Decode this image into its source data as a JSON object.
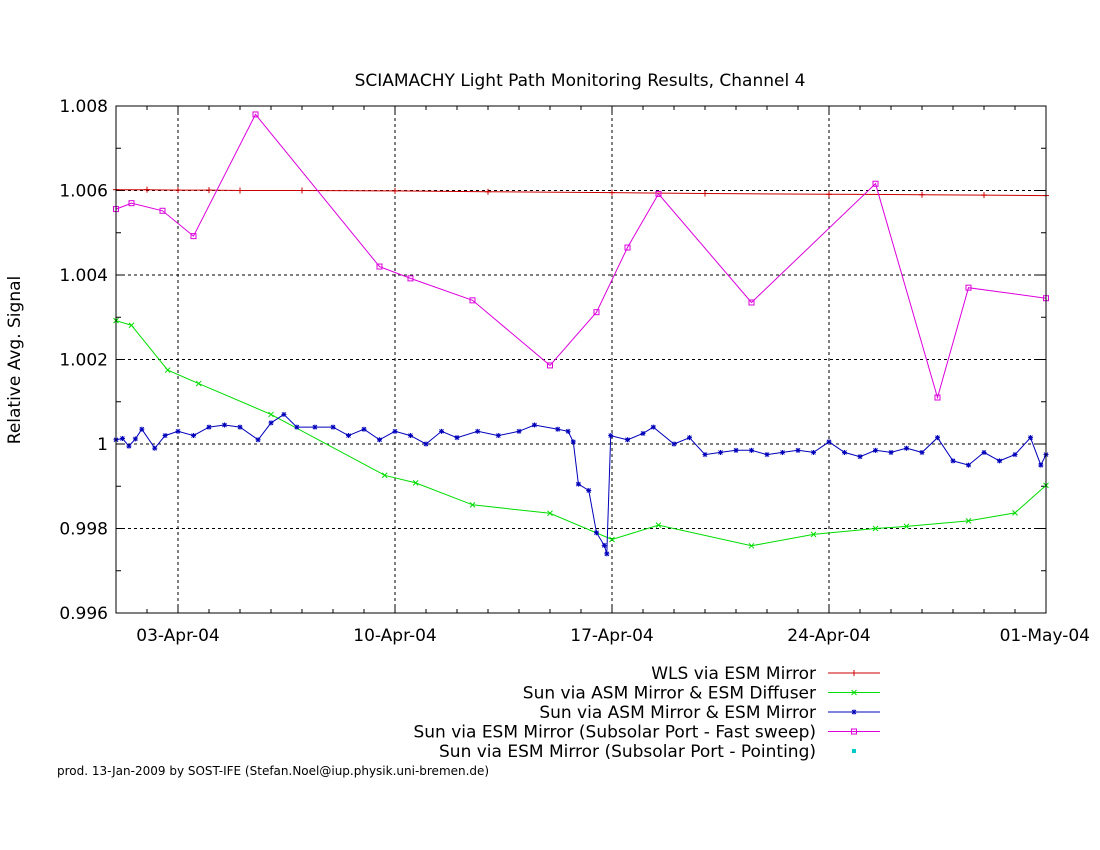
{
  "chart_data": {
    "type": "line",
    "title": "SCIAMACHY Light Path Monitoring Results, Channel 4",
    "xlabel": "",
    "ylabel": "Relative Avg. Signal",
    "x_axis_type": "date",
    "xlim": [
      "2004-04-01",
      "2004-05-01"
    ],
    "ylim": [
      0.996,
      1.008
    ],
    "x_ticks": [
      {
        "date": "2004-04-03",
        "label": "03-Apr-04"
      },
      {
        "date": "2004-04-10",
        "label": "10-Apr-04"
      },
      {
        "date": "2004-04-17",
        "label": "17-Apr-04"
      },
      {
        "date": "2004-04-24",
        "label": "24-Apr-04"
      },
      {
        "date": "2004-05-01",
        "label": "01-May-04"
      }
    ],
    "y_ticks": [
      {
        "value": 0.996,
        "label": "0.996"
      },
      {
        "value": 0.998,
        "label": "0.998"
      },
      {
        "value": 1.0,
        "label": "1"
      },
      {
        "value": 1.002,
        "label": "1.002"
      },
      {
        "value": 1.004,
        "label": "1.004"
      },
      {
        "value": 1.006,
        "label": "1.006"
      },
      {
        "value": 1.008,
        "label": "1.008"
      }
    ],
    "grid": true,
    "legend_position": "bottom-right",
    "series": [
      {
        "name": "WLS via ESM Mirror",
        "color": "#cc0000",
        "marker": "plus",
        "points": [
          [
            "2004-04-01 00:00",
            1.00602
          ],
          [
            "2004-04-02 00:00",
            1.00602
          ],
          [
            "2004-04-03 00:00",
            1.00601
          ],
          [
            "2004-04-04 00:00",
            1.00601
          ],
          [
            "2004-04-05 00:00",
            1.006
          ],
          [
            "2004-04-07 00:00",
            1.006
          ],
          [
            "2004-04-10 00:00",
            1.00599
          ],
          [
            "2004-04-13 00:00",
            1.00597
          ],
          [
            "2004-04-17 00:00",
            1.00595
          ],
          [
            "2004-04-20 00:00",
            1.00593
          ],
          [
            "2004-04-24 00:00",
            1.00591
          ],
          [
            "2004-04-27 00:00",
            1.0059
          ],
          [
            "2004-04-29 00:00",
            1.00589
          ],
          [
            "2004-05-01 00:00",
            1.00588
          ]
        ]
      },
      {
        "name": "Sun via ASM Mirror & ESM Diffuser",
        "color": "#00dd00",
        "marker": "x",
        "points": [
          [
            "2004-04-01 00:00",
            1.00292
          ],
          [
            "2004-04-01 12:00",
            1.00281
          ],
          [
            "2004-04-02 16:00",
            1.00175
          ],
          [
            "2004-04-03 16:00",
            1.00143
          ],
          [
            "2004-04-06 00:00",
            1.0007
          ],
          [
            "2004-04-09 16:00",
            0.99926
          ],
          [
            "2004-04-10 16:00",
            0.99908
          ],
          [
            "2004-04-12 12:00",
            0.99856
          ],
          [
            "2004-04-15 00:00",
            0.99836
          ],
          [
            "2004-04-17 00:00",
            0.99774
          ],
          [
            "2004-04-18 12:00",
            0.99808
          ],
          [
            "2004-04-21 12:00",
            0.99759
          ],
          [
            "2004-04-23 12:00",
            0.99786
          ],
          [
            "2004-04-25 12:00",
            0.998
          ],
          [
            "2004-04-26 12:00",
            0.99805
          ],
          [
            "2004-04-28 12:00",
            0.99818
          ],
          [
            "2004-04-30 00:00",
            0.99837
          ],
          [
            "2004-05-01 00:00",
            0.99902
          ]
        ]
      },
      {
        "name": "Sun via ASM Mirror & ESM Mirror",
        "color": "#0000bb",
        "marker": "star",
        "points": [
          [
            "2004-04-01 00:00",
            1.0001
          ],
          [
            "2004-04-01 05:00",
            1.00013
          ],
          [
            "2004-04-01 10:00",
            0.99995
          ],
          [
            "2004-04-01 15:00",
            1.00012
          ],
          [
            "2004-04-01 20:00",
            1.00035
          ],
          [
            "2004-04-02 06:00",
            0.9999
          ],
          [
            "2004-04-02 14:00",
            1.0002
          ],
          [
            "2004-04-03 00:00",
            1.0003
          ],
          [
            "2004-04-03 12:00",
            1.0002
          ],
          [
            "2004-04-04 00:00",
            1.0004
          ],
          [
            "2004-04-04 12:00",
            1.00045
          ],
          [
            "2004-04-05 00:00",
            1.0004
          ],
          [
            "2004-04-05 14:00",
            1.0001
          ],
          [
            "2004-04-06 00:00",
            1.0005
          ],
          [
            "2004-04-06 10:00",
            1.0007
          ],
          [
            "2004-04-06 20:00",
            1.0004
          ],
          [
            "2004-04-07 10:00",
            1.0004
          ],
          [
            "2004-04-08 00:00",
            1.0004
          ],
          [
            "2004-04-08 12:00",
            1.0002
          ],
          [
            "2004-04-09 00:00",
            1.00035
          ],
          [
            "2004-04-09 12:00",
            1.0001
          ],
          [
            "2004-04-10 00:00",
            1.0003
          ],
          [
            "2004-04-10 12:00",
            1.0002
          ],
          [
            "2004-04-11 00:00",
            1.0
          ],
          [
            "2004-04-11 12:00",
            1.0003
          ],
          [
            "2004-04-12 00:00",
            1.00015
          ],
          [
            "2004-04-12 16:00",
            1.0003
          ],
          [
            "2004-04-13 08:00",
            1.0002
          ],
          [
            "2004-04-14 00:00",
            1.0003
          ],
          [
            "2004-04-14 12:00",
            1.00045
          ],
          [
            "2004-04-15 06:00",
            1.00035
          ],
          [
            "2004-04-15 14:00",
            1.0003
          ],
          [
            "2004-04-15 18:00",
            1.00005
          ],
          [
            "2004-04-15 22:00",
            0.99905
          ],
          [
            "2004-04-16 06:00",
            0.9989
          ],
          [
            "2004-04-16 12:00",
            0.9979
          ],
          [
            "2004-04-16 18:00",
            0.9976
          ],
          [
            "2004-04-16 20:00",
            0.9974
          ],
          [
            "2004-04-16 23:00",
            1.0002
          ],
          [
            "2004-04-17 12:00",
            1.0001
          ],
          [
            "2004-04-18 00:00",
            1.00025
          ],
          [
            "2004-04-18 08:00",
            1.0004
          ],
          [
            "2004-04-19 00:00",
            1.0
          ],
          [
            "2004-04-19 12:00",
            1.00015
          ],
          [
            "2004-04-20 00:00",
            0.99975
          ],
          [
            "2004-04-20 12:00",
            0.9998
          ],
          [
            "2004-04-21 00:00",
            0.99985
          ],
          [
            "2004-04-21 12:00",
            0.99985
          ],
          [
            "2004-04-22 00:00",
            0.99975
          ],
          [
            "2004-04-22 12:00",
            0.9998
          ],
          [
            "2004-04-23 00:00",
            0.99985
          ],
          [
            "2004-04-23 12:00",
            0.9998
          ],
          [
            "2004-04-24 00:00",
            1.00005
          ],
          [
            "2004-04-24 12:00",
            0.9998
          ],
          [
            "2004-04-25 00:00",
            0.9997
          ],
          [
            "2004-04-25 12:00",
            0.99985
          ],
          [
            "2004-04-26 00:00",
            0.9998
          ],
          [
            "2004-04-26 12:00",
            0.9999
          ],
          [
            "2004-04-27 00:00",
            0.9998
          ],
          [
            "2004-04-27 12:00",
            1.00015
          ],
          [
            "2004-04-28 00:00",
            0.9996
          ],
          [
            "2004-04-28 12:00",
            0.9995
          ],
          [
            "2004-04-29 00:00",
            0.9998
          ],
          [
            "2004-04-29 12:00",
            0.9996
          ],
          [
            "2004-04-30 00:00",
            0.99975
          ],
          [
            "2004-04-30 12:00",
            1.00015
          ],
          [
            "2004-04-30 20:00",
            0.9995
          ],
          [
            "2004-05-01 00:00",
            0.99975
          ]
        ]
      },
      {
        "name": "Sun via ESM Mirror (Subsolar Port - Fast sweep)",
        "color": "#dd00dd",
        "marker": "square",
        "points": [
          [
            "2004-04-01 00:00",
            1.00556
          ],
          [
            "2004-04-01 12:00",
            1.0057
          ],
          [
            "2004-04-02 12:00",
            1.00552
          ],
          [
            "2004-04-03 12:00",
            1.00492
          ],
          [
            "2004-04-05 12:00",
            1.0078
          ],
          [
            "2004-04-09 12:00",
            1.0042
          ],
          [
            "2004-04-10 12:00",
            1.00392
          ],
          [
            "2004-04-12 12:00",
            1.0034
          ],
          [
            "2004-04-15 00:00",
            1.00186
          ],
          [
            "2004-04-16 12:00",
            1.00312
          ],
          [
            "2004-04-17 12:00",
            1.00465
          ],
          [
            "2004-04-18 12:00",
            1.00592
          ],
          [
            "2004-04-21 12:00",
            1.00335
          ],
          [
            "2004-04-25 12:00",
            1.00616
          ],
          [
            "2004-04-27 12:00",
            1.0011
          ],
          [
            "2004-04-28 12:00",
            1.0037
          ],
          [
            "2004-05-01 00:00",
            1.00345
          ]
        ]
      },
      {
        "name": "Sun via ESM Mirror (Subsolar Port - Pointing)",
        "color": "#00cccc",
        "marker": "dot",
        "points": []
      }
    ]
  },
  "footer": "prod. 13-Jan-2009 by SOST-IFE (Stefan.Noel@iup.physik.uni-bremen.de)"
}
